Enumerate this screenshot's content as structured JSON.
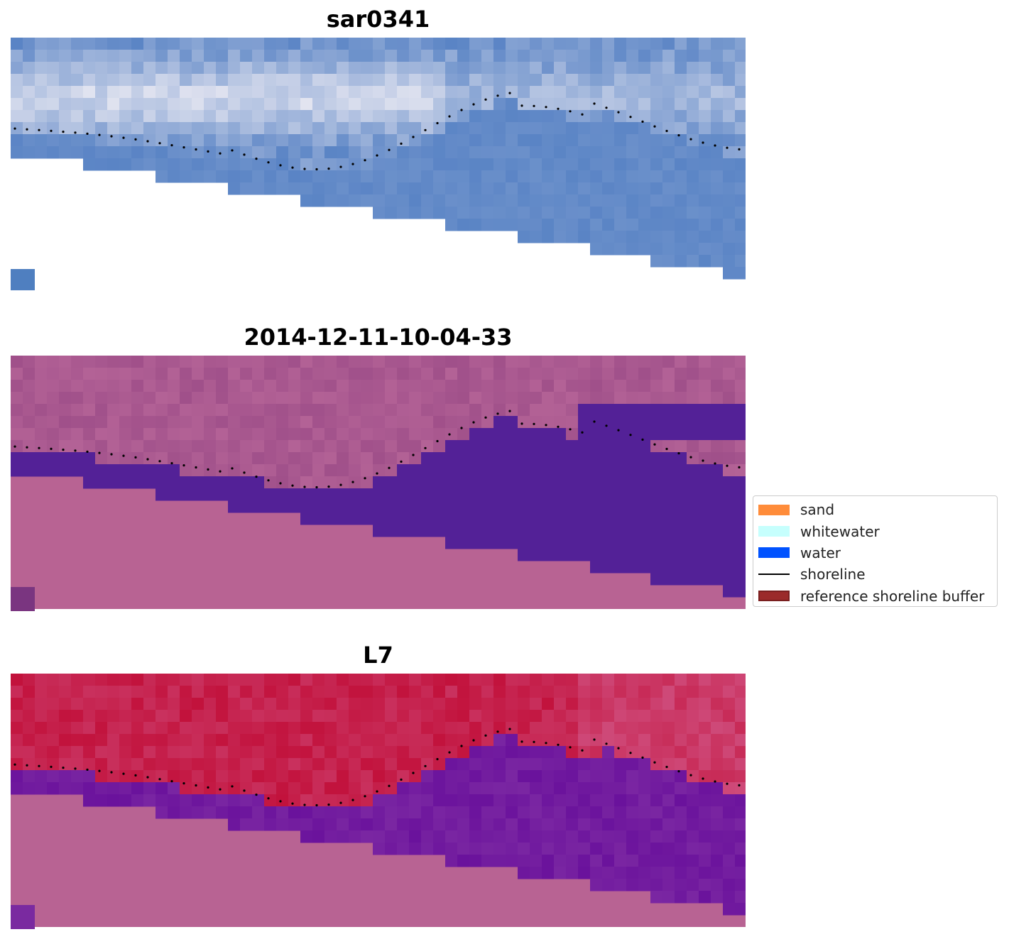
{
  "figure": {
    "panels": [
      {
        "title": "sar0341",
        "style": "rgb"
      },
      {
        "title": "2014-12-11-10-04-33",
        "style": "classified"
      },
      {
        "title": "L7",
        "style": "index"
      }
    ]
  },
  "legend": {
    "items": [
      {
        "label": "sand",
        "kind": "patch",
        "color": "#ff8c3a"
      },
      {
        "label": "whitewater",
        "kind": "patch",
        "color": "#c6fffd"
      },
      {
        "label": "water",
        "kind": "patch",
        "color": "#0052ff"
      },
      {
        "label": "shoreline",
        "kind": "line",
        "color": "#000000"
      },
      {
        "label": "reference shoreline buffer",
        "kind": "patch",
        "color": "#9b2a2a",
        "edge": "#7a1f1f"
      }
    ]
  },
  "colors": {
    "nodata_fill": "#b86393",
    "water_class": "#532197",
    "land_class": "#a0508a",
    "rgb_sky": "#5a84c5",
    "rgb_cloud": "#e8e8f2",
    "index_high": "#c2123c",
    "index_low": "#6a129c",
    "shoreline_dots": "#000000"
  }
}
